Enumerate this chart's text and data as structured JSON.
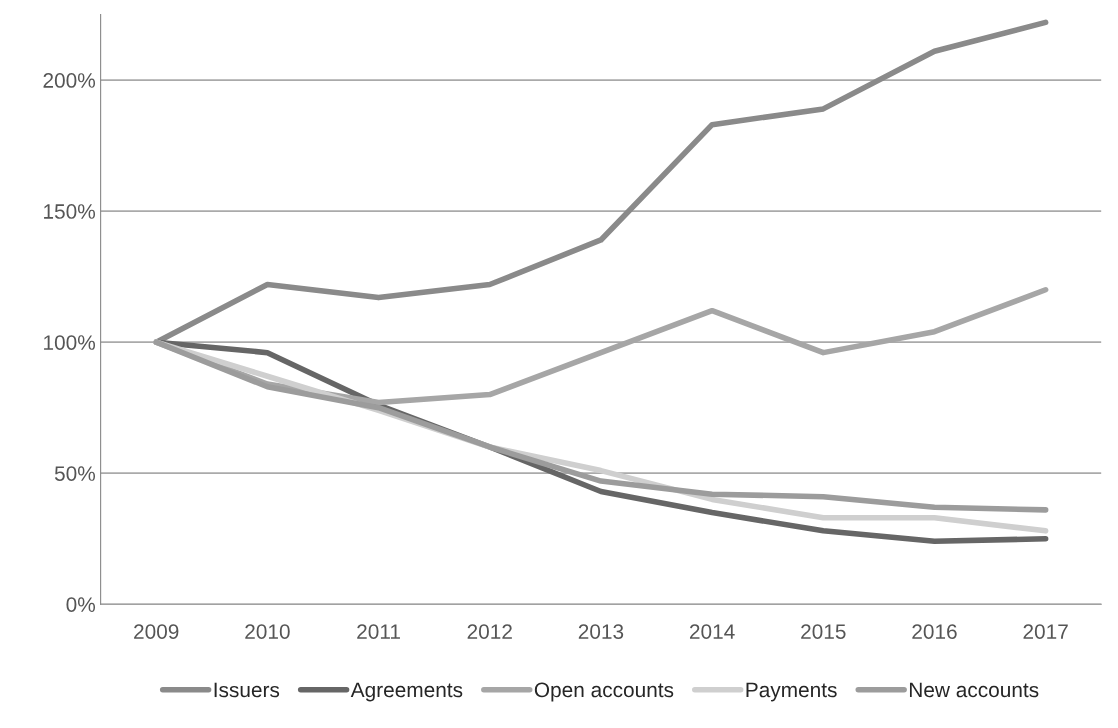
{
  "chart_data": {
    "type": "line",
    "categories": [
      "2009",
      "2010",
      "2011",
      "2012",
      "2013",
      "2014",
      "2015",
      "2016",
      "2017"
    ],
    "series": [
      {
        "name": "Issuers",
        "color": "#8a8a8a",
        "values": [
          100,
          122,
          117,
          122,
          139,
          183,
          189,
          211,
          222
        ]
      },
      {
        "name": "Agreements",
        "color": "#666666",
        "values": [
          100,
          96,
          76,
          60,
          43,
          35,
          28,
          24,
          25
        ]
      },
      {
        "name": "Open accounts",
        "color": "#a6a6a6",
        "values": [
          100,
          84,
          77,
          80,
          96,
          112,
          96,
          104,
          120
        ]
      },
      {
        "name": "Payments",
        "color": "#cfcfcf",
        "values": [
          100,
          87,
          74,
          60,
          51,
          40,
          33,
          33,
          28
        ]
      },
      {
        "name": "New accounts",
        "color": "#9c9c9c",
        "values": [
          100,
          83,
          75,
          60,
          47,
          42,
          41,
          37,
          36
        ]
      }
    ],
    "ylim": [
      0,
      225
    ],
    "yticks": [
      {
        "value": 0,
        "label": "0%"
      },
      {
        "value": 50,
        "label": "50%"
      },
      {
        "value": 100,
        "label": "100%"
      },
      {
        "value": 150,
        "label": "150%"
      },
      {
        "value": 200,
        "label": "200%"
      }
    ],
    "grid": "y",
    "legend": "bottom",
    "marker": "none",
    "line_style": "solid"
  }
}
